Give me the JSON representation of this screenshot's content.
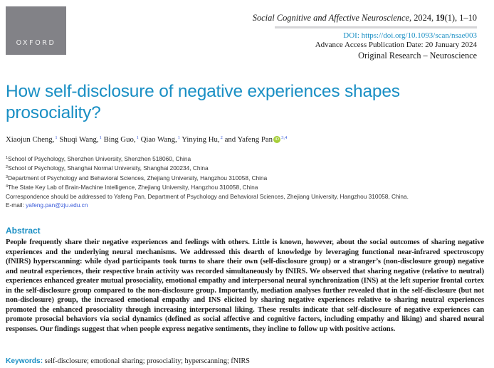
{
  "publisher": {
    "logo_text": "OXFORD"
  },
  "header": {
    "journal_name": "Social Cognitive and Affective Neuroscience",
    "journal_citation": ", 2024, ",
    "volume": "19",
    "issue_pages": "(1), 1–10",
    "doi": "DOI: https://doi.org/10.1093/scan/nsae003",
    "publication_date": "Advance Access Publication Date: 20 January 2024",
    "category": "Original Research – Neuroscience"
  },
  "article": {
    "title": "How self-disclosure of negative experiences shapes prosociality?",
    "authors": [
      {
        "name": "Xiaojun Cheng,",
        "affil": "1"
      },
      {
        "name": "Shuqi Wang,",
        "affil": "1"
      },
      {
        "name": "Bing Guo,",
        "affil": "1"
      },
      {
        "name": "Qiao Wang,",
        "affil": "1"
      },
      {
        "name": "Yinying Hu,",
        "affil": "2"
      },
      {
        "name": "and Yafeng Pan",
        "affil": "3,4"
      }
    ],
    "orcid_label": "iD",
    "affiliations": [
      {
        "num": "1",
        "text": "School of Psychology, Shenzhen University, Shenzhen 518060, China"
      },
      {
        "num": "2",
        "text": "School of Psychology, Shanghai Normal University, Shanghai 200234, China"
      },
      {
        "num": "3",
        "text": "Department of Psychology and Behavioral Sciences, Zhejiang University, Hangzhou 310058, China"
      },
      {
        "num": "4",
        "text": "The State Key Lab of Brain-Machine Intelligence, Zhejiang University, Hangzhou 310058, China"
      }
    ],
    "correspondence": "Correspondence should be addressed to Yafeng Pan, Department of Psychology and Behavioral Sciences, Zhejiang University, Hangzhou 310058, China.",
    "email_label": "E-mail: ",
    "email": "yafeng.pan@zju.edu.cn",
    "abstract_heading": "Abstract",
    "abstract": "People frequently share their negative experiences and feelings with others. Little is known, however, about the social outcomes of sharing negative experiences and the underlying neural mechanisms. We addressed this dearth of knowledge by leveraging functional near-infrared spectroscopy (fNIRS) hyperscanning: while dyad participants took turns to share their own (self-disclosure group) or a stranger’s (non-disclosure group) negative and neutral experiences, their respective brain activity was recorded simultaneously by fNIRS. We observed that sharing negative (relative to neutral) experiences enhanced greater mutual prosociality, emotional empathy and interpersonal neural synchronization (INS) at the left superior frontal cortex in the self-disclosure group compared to the non-disclosure group. Importantly, mediation analyses further revealed that in the self-disclosure (but not non-disclosure) group, the increased emotional empathy and INS elicited by sharing negative experiences relative to sharing neutral experiences promoted the enhanced prosociality through increasing interpersonal liking. These results indicate that self-disclosure of negative experiences can promote prosocial behaviors via social dynamics (defined as social affective and cognitive factors, including empathy and liking) and shared neural responses. Our findings suggest that when people express negative sentiments, they incline to follow up with positive actions.",
    "keywords_label": "Keywords:",
    "keywords": " self-disclosure; emotional sharing; prosociality; hyperscanning; fNIRS"
  },
  "colors": {
    "accent": "#1a8fc4",
    "link": "#3a5bd9",
    "logo_bg": "#828287",
    "orcid": "#a6ce39"
  }
}
